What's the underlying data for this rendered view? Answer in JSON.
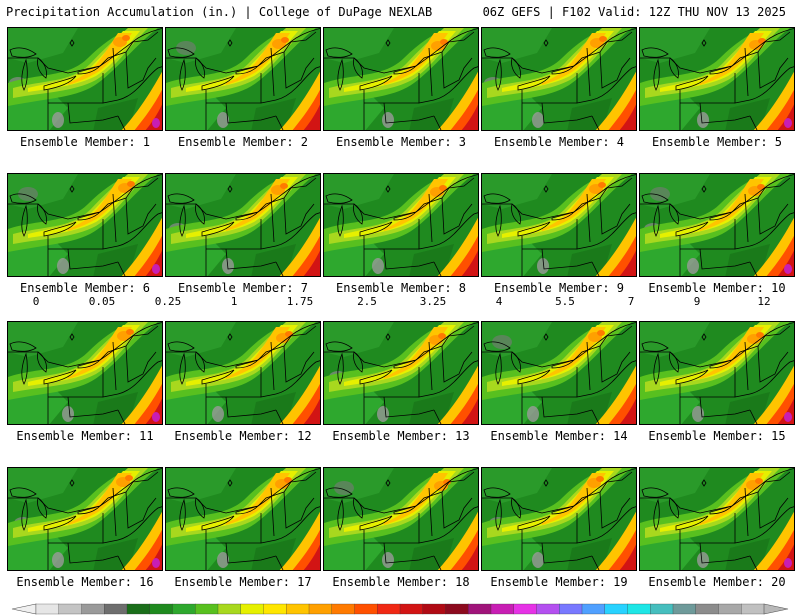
{
  "header": {
    "left": "Precipitation Accumulation (in.) | College of DuPage NEXLAB",
    "right": "06Z GEFS | F102 Valid: 12Z THU NOV 13 2025"
  },
  "label_prefix": "Ensemble Member: ",
  "members": [
    1,
    2,
    3,
    4,
    5,
    6,
    7,
    8,
    9,
    10,
    11,
    12,
    13,
    14,
    15,
    16,
    17,
    18,
    19,
    20
  ],
  "colorbar": {
    "tick_labels": [
      "0",
      "0.05",
      "0.25",
      "1",
      "1.75",
      "2.5",
      "3.25",
      "4",
      "5.5",
      "7",
      "9",
      "12"
    ],
    "colors": [
      "#e6e6e6",
      "#c4c4c4",
      "#9a9a9a",
      "#6e6e6e",
      "#1a6e1a",
      "#1f8a1f",
      "#2ea82e",
      "#58c01f",
      "#a8d81e",
      "#e6f000",
      "#ffe600",
      "#ffc400",
      "#ffa000",
      "#ff7a00",
      "#ff5000",
      "#f02814",
      "#d21414",
      "#b00a14",
      "#8c0a1e",
      "#a0147a",
      "#c81eb4",
      "#e632e6",
      "#b450f0",
      "#7878ff",
      "#50a0ff",
      "#28d2ff",
      "#1ee6e6",
      "#46bebe",
      "#6e9a9a",
      "#8c8c8c",
      "#a8a8a8",
      "#c0c0c0"
    ]
  }
}
